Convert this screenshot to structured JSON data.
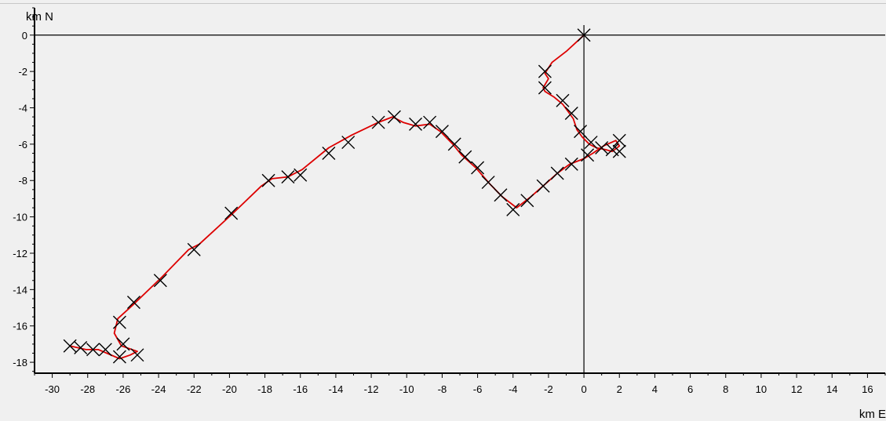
{
  "chart_data": {
    "type": "line",
    "xlabel": "km E",
    "ylabel": "km N",
    "xlim": [
      -31,
      17
    ],
    "ylim": [
      -18.6,
      1.5
    ],
    "x_ticks": [
      -30,
      -28,
      -26,
      -24,
      -22,
      -20,
      -18,
      -16,
      -14,
      -12,
      -10,
      -8,
      -6,
      -4,
      -2,
      0,
      2,
      4,
      6,
      8,
      10,
      12,
      14,
      16
    ],
    "y_ticks": [
      0,
      -2,
      -4,
      -6,
      -8,
      -10,
      -12,
      -14,
      -16,
      -18
    ],
    "grid": false,
    "reference_lines": {
      "x": 0,
      "y": 0
    },
    "colors": {
      "track": "#dd0000",
      "markers": "#000000",
      "axes": "#000000",
      "background": "#f0f0f0"
    },
    "series": [
      {
        "style": "line",
        "points": [
          [
            0,
            0
          ],
          [
            -1.0,
            -0.9
          ],
          [
            -1.8,
            -1.5
          ],
          [
            -2.2,
            -2.1
          ],
          [
            -2.0,
            -2.4
          ],
          [
            -2.3,
            -2.9
          ],
          [
            -2.2,
            -3.1
          ],
          [
            -1.7,
            -3.4
          ],
          [
            -1.2,
            -3.8
          ],
          [
            -0.9,
            -4.2
          ],
          [
            -0.6,
            -4.6
          ],
          [
            -0.4,
            -5.2
          ],
          [
            -0.1,
            -5.6
          ],
          [
            0.3,
            -6.0
          ],
          [
            0.7,
            -6.2
          ],
          [
            1.2,
            -6.3
          ],
          [
            1.6,
            -6.4
          ],
          [
            2.0,
            -6.1
          ],
          [
            1.8,
            -5.8
          ],
          [
            1.1,
            -6.1
          ],
          [
            0.5,
            -6.5
          ],
          [
            0.0,
            -6.8
          ],
          [
            -0.8,
            -7.1
          ],
          [
            -1.5,
            -7.6
          ],
          [
            -2.3,
            -8.3
          ],
          [
            -3.0,
            -8.9
          ],
          [
            -3.8,
            -9.5
          ],
          [
            -4.6,
            -8.9
          ],
          [
            -5.3,
            -8.2
          ],
          [
            -6.1,
            -7.3
          ],
          [
            -6.9,
            -6.6
          ],
          [
            -7.4,
            -6.0
          ],
          [
            -8.1,
            -5.3
          ],
          [
            -8.7,
            -4.9
          ],
          [
            -9.5,
            -5.0
          ],
          [
            -10.2,
            -4.8
          ],
          [
            -10.8,
            -4.5
          ],
          [
            -11.6,
            -4.8
          ],
          [
            -13.1,
            -5.5
          ],
          [
            -14.4,
            -6.2
          ],
          [
            -15.9,
            -7.4
          ],
          [
            -16.7,
            -7.8
          ],
          [
            -17.6,
            -7.9
          ],
          [
            -18.2,
            -8.3
          ],
          [
            -19.8,
            -9.8
          ],
          [
            -21.7,
            -11.5
          ],
          [
            -22.3,
            -11.8
          ],
          [
            -23.8,
            -13.3
          ],
          [
            -25.4,
            -14.8
          ],
          [
            -26.3,
            -15.6
          ],
          [
            -26.5,
            -16.4
          ],
          [
            -26.1,
            -17.1
          ],
          [
            -25.2,
            -17.4
          ],
          [
            -25.6,
            -17.6
          ],
          [
            -26.2,
            -17.8
          ],
          [
            -27.4,
            -17.3
          ],
          [
            -28.1,
            -17.3
          ],
          [
            -29.0,
            -17.1
          ]
        ]
      },
      {
        "style": "marker-x",
        "points": [
          [
            0,
            0
          ],
          [
            -2.2,
            -2.0
          ],
          [
            -2.2,
            -2.9
          ],
          [
            -1.2,
            -3.6
          ],
          [
            -0.7,
            -4.3
          ],
          [
            -0.2,
            -5.3
          ],
          [
            0.4,
            -5.9
          ],
          [
            0.2,
            -6.6
          ],
          [
            1.0,
            -6.2
          ],
          [
            1.6,
            -6.3
          ],
          [
            2.0,
            -5.8
          ],
          [
            2.0,
            -6.4
          ],
          [
            -0.7,
            -7.1
          ],
          [
            -1.5,
            -7.6
          ],
          [
            -2.3,
            -8.3
          ],
          [
            -3.2,
            -9.1
          ],
          [
            -4.0,
            -9.6
          ],
          [
            -4.7,
            -8.8
          ],
          [
            -5.4,
            -8.1
          ],
          [
            -6.0,
            -7.3
          ],
          [
            -6.7,
            -6.7
          ],
          [
            -7.3,
            -6.0
          ],
          [
            -8.0,
            -5.3
          ],
          [
            -8.7,
            -4.8
          ],
          [
            -9.5,
            -4.9
          ],
          [
            -10.7,
            -4.5
          ],
          [
            -11.6,
            -4.8
          ],
          [
            -13.3,
            -5.9
          ],
          [
            -14.4,
            -6.5
          ],
          [
            -16.0,
            -7.7
          ],
          [
            -16.7,
            -7.8
          ],
          [
            -17.8,
            -8.0
          ],
          [
            -19.9,
            -9.8
          ],
          [
            -22.0,
            -11.8
          ],
          [
            -23.9,
            -13.5
          ],
          [
            -25.4,
            -14.7
          ],
          [
            -26.2,
            -15.8
          ],
          [
            -26.0,
            -17.0
          ],
          [
            -25.2,
            -17.6
          ],
          [
            -26.2,
            -17.7
          ],
          [
            -27.0,
            -17.3
          ],
          [
            -27.7,
            -17.3
          ],
          [
            -28.4,
            -17.2
          ],
          [
            -29.0,
            -17.1
          ]
        ]
      }
    ]
  }
}
